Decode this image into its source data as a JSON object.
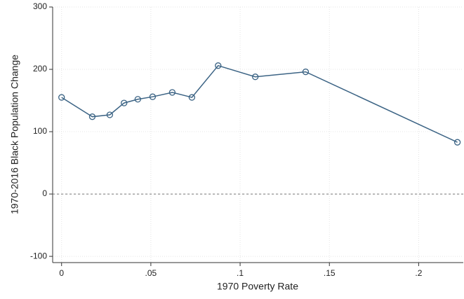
{
  "chart_data": {
    "type": "line",
    "x_label": "1970 Poverty Rate",
    "y_label": "1970-2016 Black Population Change",
    "x": [
      0,
      0.0172,
      0.027,
      0.035,
      0.0427,
      0.051,
      0.062,
      0.073,
      0.0877,
      0.1085,
      0.1367,
      0.2217
    ],
    "series": [
      {
        "color": "#3b6384",
        "values": [
          155,
          124,
          127,
          146,
          152,
          156,
          163,
          155,
          206,
          188,
          196,
          83
        ]
      }
    ],
    "xlim": [
      -0.005,
      0.225
    ],
    "ylim": [
      -110,
      300
    ],
    "xticks": [
      0,
      {
        "value": 0.05,
        "label": ".05"
      },
      {
        "value": 0.1,
        "label": ".1"
      },
      {
        "value": 0.15,
        "label": ".15"
      },
      {
        "value": 0.2,
        "label": ".2"
      }
    ],
    "yticks": [
      -100,
      0,
      100,
      200,
      300
    ],
    "reference_line": 0,
    "grid": true
  }
}
